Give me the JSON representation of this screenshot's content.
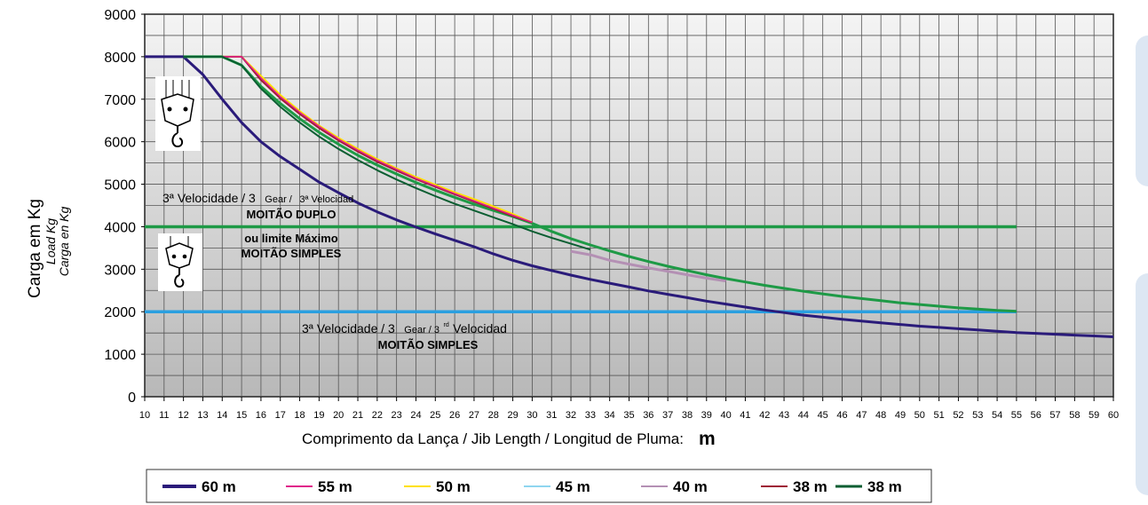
{
  "chart_data": {
    "type": "line",
    "ylabel": "Carga em Kg",
    "ylabel_alt": [
      "Load Kg",
      "Carga en Kg"
    ],
    "xlabel": "Comprimento da Lança / Jib Length / Longitud de Pluma:",
    "xlabel_unit": "m",
    "xlim": [
      10,
      60
    ],
    "ylim": [
      0,
      9000
    ],
    "yticks": [
      0,
      1000,
      2000,
      3000,
      4000,
      5000,
      6000,
      7000,
      8000,
      9000
    ],
    "xticks": [
      10,
      11,
      12,
      13,
      14,
      15,
      16,
      17,
      18,
      19,
      20,
      21,
      22,
      23,
      24,
      25,
      26,
      27,
      28,
      29,
      30,
      31,
      32,
      33,
      34,
      35,
      36,
      37,
      38,
      39,
      40,
      41,
      42,
      43,
      44,
      45,
      46,
      47,
      48,
      49,
      50,
      51,
      52,
      53,
      54,
      55,
      56,
      57,
      58,
      59,
      60
    ],
    "grid": true,
    "legend_position": "bottom",
    "series": [
      {
        "name": "60 m",
        "color": "#2a1b7a",
        "width": 3,
        "points": [
          [
            10,
            8000
          ],
          [
            12,
            8000
          ],
          [
            13,
            7580
          ],
          [
            14,
            7000
          ],
          [
            15,
            6450
          ],
          [
            16,
            6000
          ],
          [
            17,
            5650
          ],
          [
            18,
            5350
          ],
          [
            19,
            5050
          ],
          [
            20,
            4800
          ],
          [
            21,
            4560
          ],
          [
            22,
            4350
          ],
          [
            23,
            4160
          ],
          [
            24,
            3990
          ],
          [
            25,
            3830
          ],
          [
            26,
            3680
          ],
          [
            27,
            3530
          ],
          [
            28,
            3360
          ],
          [
            29,
            3210
          ],
          [
            30,
            3080
          ],
          [
            31,
            2970
          ],
          [
            32,
            2860
          ],
          [
            33,
            2760
          ],
          [
            34,
            2670
          ],
          [
            35,
            2580
          ],
          [
            36,
            2490
          ],
          [
            37,
            2410
          ],
          [
            38,
            2330
          ],
          [
            39,
            2250
          ],
          [
            40,
            2180
          ],
          [
            41,
            2110
          ],
          [
            42,
            2040
          ],
          [
            43,
            1980
          ],
          [
            44,
            1920
          ],
          [
            45,
            1870
          ],
          [
            46,
            1820
          ],
          [
            47,
            1780
          ],
          [
            48,
            1740
          ],
          [
            49,
            1700
          ],
          [
            50,
            1660
          ],
          [
            51,
            1630
          ],
          [
            52,
            1600
          ],
          [
            53,
            1570
          ],
          [
            54,
            1540
          ],
          [
            55,
            1510
          ],
          [
            56,
            1490
          ],
          [
            57,
            1470
          ],
          [
            58,
            1450
          ],
          [
            59,
            1430
          ],
          [
            60,
            1410
          ]
        ]
      },
      {
        "name": "55 m",
        "color": "#1e9a46",
        "width": 3,
        "points": [
          [
            12,
            8000
          ],
          [
            14,
            8000
          ],
          [
            15,
            7800
          ],
          [
            16,
            7300
          ],
          [
            17,
            6900
          ],
          [
            18,
            6540
          ],
          [
            19,
            6220
          ],
          [
            20,
            5940
          ],
          [
            21,
            5680
          ],
          [
            22,
            5450
          ],
          [
            23,
            5240
          ],
          [
            24,
            5040
          ],
          [
            25,
            4860
          ],
          [
            26,
            4690
          ],
          [
            27,
            4530
          ],
          [
            28,
            4380
          ],
          [
            29,
            4240
          ],
          [
            30,
            4080
          ],
          [
            31,
            3890
          ],
          [
            32,
            3720
          ],
          [
            33,
            3570
          ],
          [
            34,
            3430
          ],
          [
            35,
            3300
          ],
          [
            36,
            3180
          ],
          [
            37,
            3070
          ],
          [
            38,
            2970
          ],
          [
            39,
            2870
          ],
          [
            40,
            2780
          ],
          [
            41,
            2700
          ],
          [
            42,
            2620
          ],
          [
            43,
            2550
          ],
          [
            44,
            2480
          ],
          [
            45,
            2420
          ],
          [
            46,
            2360
          ],
          [
            47,
            2310
          ],
          [
            48,
            2260
          ],
          [
            49,
            2210
          ],
          [
            50,
            2170
          ],
          [
            51,
            2130
          ],
          [
            52,
            2090
          ],
          [
            53,
            2060
          ],
          [
            54,
            2030
          ],
          [
            55,
            2010
          ]
        ]
      },
      {
        "name": "50 m",
        "color": "#ffe100",
        "width": 2,
        "points": [
          [
            14,
            8000
          ],
          [
            15,
            8000
          ],
          [
            16,
            7550
          ],
          [
            17,
            7100
          ],
          [
            18,
            6720
          ],
          [
            19,
            6380
          ],
          [
            20,
            6090
          ],
          [
            21,
            5830
          ],
          [
            22,
            5590
          ],
          [
            23,
            5370
          ],
          [
            24,
            5170
          ],
          [
            25,
            4990
          ],
          [
            26,
            4810
          ],
          [
            27,
            4650
          ],
          [
            28,
            4480
          ],
          [
            29,
            4300
          ],
          [
            30,
            4100
          ]
        ]
      },
      {
        "name": "40 m",
        "color": "#b490b4",
        "width": 3,
        "points": [
          [
            32,
            3420
          ],
          [
            33,
            3340
          ],
          [
            34,
            3210
          ],
          [
            35,
            3120
          ],
          [
            36,
            3030
          ],
          [
            37,
            2950
          ],
          [
            38,
            2870
          ],
          [
            39,
            2790
          ],
          [
            40,
            2720
          ]
        ]
      },
      {
        "name": "38 m",
        "color": "#9e1c35",
        "width": 2,
        "points": [
          [
            14,
            8000
          ],
          [
            15,
            8000
          ],
          [
            16,
            7450
          ],
          [
            17,
            7020
          ],
          [
            18,
            6650
          ],
          [
            19,
            6320
          ],
          [
            20,
            6030
          ],
          [
            21,
            5770
          ],
          [
            22,
            5530
          ],
          [
            23,
            5320
          ],
          [
            24,
            5120
          ],
          [
            25,
            4940
          ],
          [
            26,
            4760
          ],
          [
            27,
            4590
          ],
          [
            28,
            4420
          ],
          [
            29,
            4250
          ],
          [
            30,
            4100
          ]
        ]
      },
      {
        "name": "55 m",
        "color": "#e0218a",
        "width": 1.5,
        "points": [
          [
            14,
            8000
          ],
          [
            15,
            8000
          ],
          [
            16,
            7500
          ],
          [
            17,
            7060
          ],
          [
            18,
            6690
          ],
          [
            19,
            6360
          ],
          [
            20,
            6060
          ],
          [
            21,
            5800
          ],
          [
            22,
            5560
          ],
          [
            23,
            5350
          ],
          [
            24,
            5140
          ],
          [
            25,
            4960
          ],
          [
            26,
            4780
          ],
          [
            27,
            4610
          ],
          [
            28,
            4440
          ],
          [
            29,
            4270
          ],
          [
            30,
            4100
          ]
        ]
      },
      {
        "name": "38 m",
        "color": "#0b5e32",
        "width": 2,
        "points": [
          [
            12,
            8000
          ],
          [
            14,
            8000
          ],
          [
            15,
            7800
          ],
          [
            16,
            7250
          ],
          [
            17,
            6820
          ],
          [
            18,
            6450
          ],
          [
            19,
            6120
          ],
          [
            20,
            5830
          ],
          [
            21,
            5570
          ],
          [
            22,
            5330
          ],
          [
            23,
            5110
          ],
          [
            24,
            4910
          ],
          [
            25,
            4720
          ],
          [
            26,
            4540
          ],
          [
            27,
            4380
          ],
          [
            28,
            4220
          ],
          [
            29,
            4060
          ],
          [
            30,
            3890
          ],
          [
            31,
            3740
          ],
          [
            32,
            3600
          ],
          [
            33,
            3460
          ]
        ]
      }
    ],
    "reference_lines": [
      {
        "color": "#1e9a46",
        "value": 4000
      },
      {
        "color": "#2a9fe0",
        "value": 2000
      }
    ],
    "annotations": {
      "upper_line1": "3ª Velocidade / 3",
      "upper_line1_gear": "Gear /",
      "upper_line1_end": "3ª Velocidad",
      "upper_line2": "MOITÃO DUPLO",
      "upper_line3": "ou limite Máximo",
      "upper_line4": "MOITÃO SIMPLES",
      "lower_line1": "3ª Velocidade / 3",
      "lower_line1_gear": "Gear / 3",
      "lower_line1_rd": "rd",
      "lower_line1_end": "Velocidad",
      "lower_line2": "MOITÃO SIMPLES"
    },
    "legend": [
      {
        "label": "60 m",
        "color": "#2a1b7a"
      },
      {
        "label": "55 m",
        "color": "#e0218a"
      },
      {
        "label": "50 m",
        "color": "#ffe100"
      },
      {
        "label": "45 m",
        "color": "#8fd6f0"
      },
      {
        "label": "40 m",
        "color": "#b490b4"
      },
      {
        "label": "38 m",
        "color": "#9e1c35"
      },
      {
        "label": "38 m",
        "color": "#0b5e32"
      }
    ]
  },
  "icons": {
    "double_block": "double-hook-block-icon",
    "single_block": "single-hook-block-icon"
  }
}
